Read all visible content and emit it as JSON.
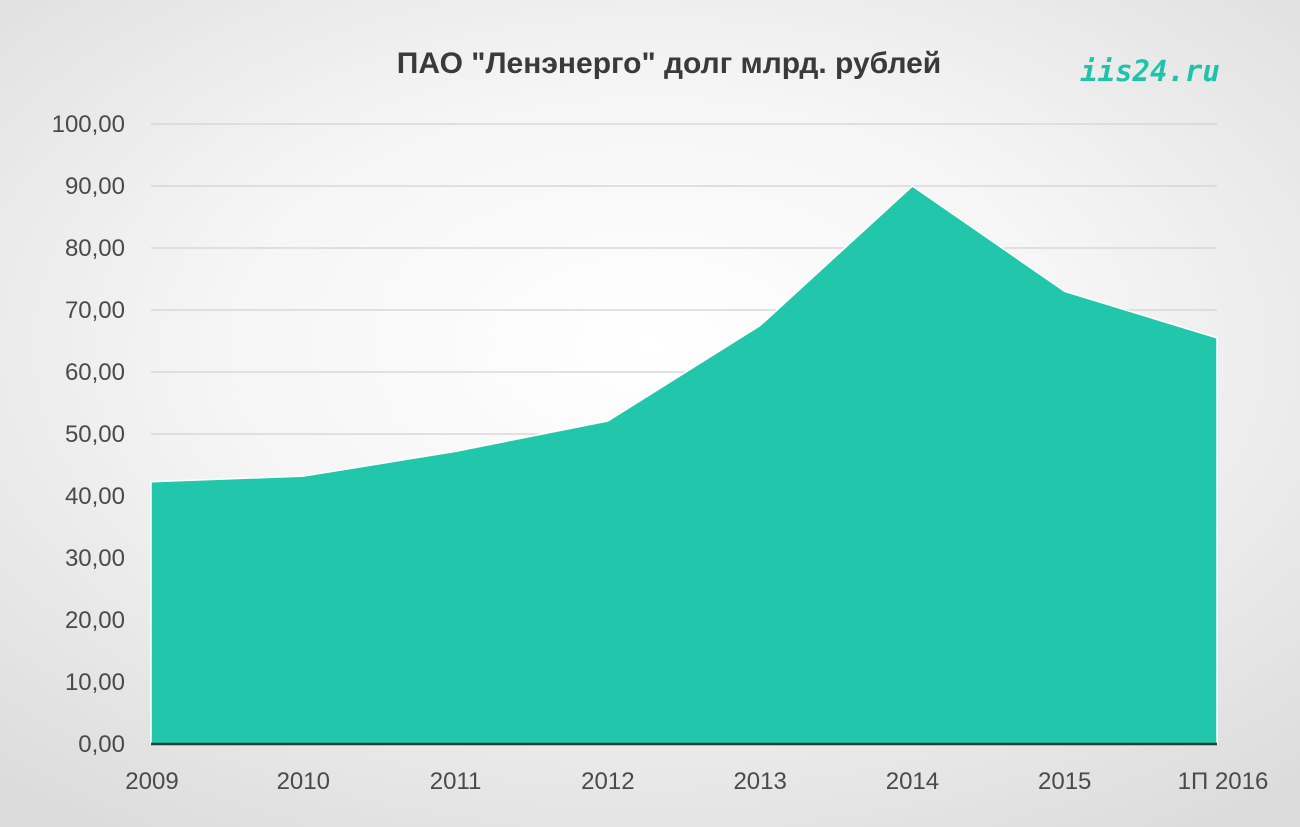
{
  "chart_data": {
    "type": "area",
    "title": "ПАО \"Ленэнерго\" долг млрд. рублей",
    "watermark": "iis24.ru",
    "categories": [
      "2009",
      "2010",
      "2011",
      "2012",
      "2013",
      "2014",
      "2015",
      "1П 2016"
    ],
    "values": [
      42.3,
      43.2,
      47.2,
      52.1,
      67.5,
      90.0,
      73.0,
      65.5
    ],
    "y_ticks": [
      "0,00",
      "10,00",
      "20,00",
      "30,00",
      "40,00",
      "50,00",
      "60,00",
      "70,00",
      "80,00",
      "90,00",
      "100,00"
    ],
    "ylim": [
      0,
      100
    ],
    "xlabel": "",
    "ylabel": "",
    "grid": true,
    "legend": "none",
    "colors": {
      "area_fill": "#22c6ab",
      "gridline": "#d2d2d2",
      "baseline": "#1f3f3a",
      "watermark": "#1fc3aa"
    }
  }
}
